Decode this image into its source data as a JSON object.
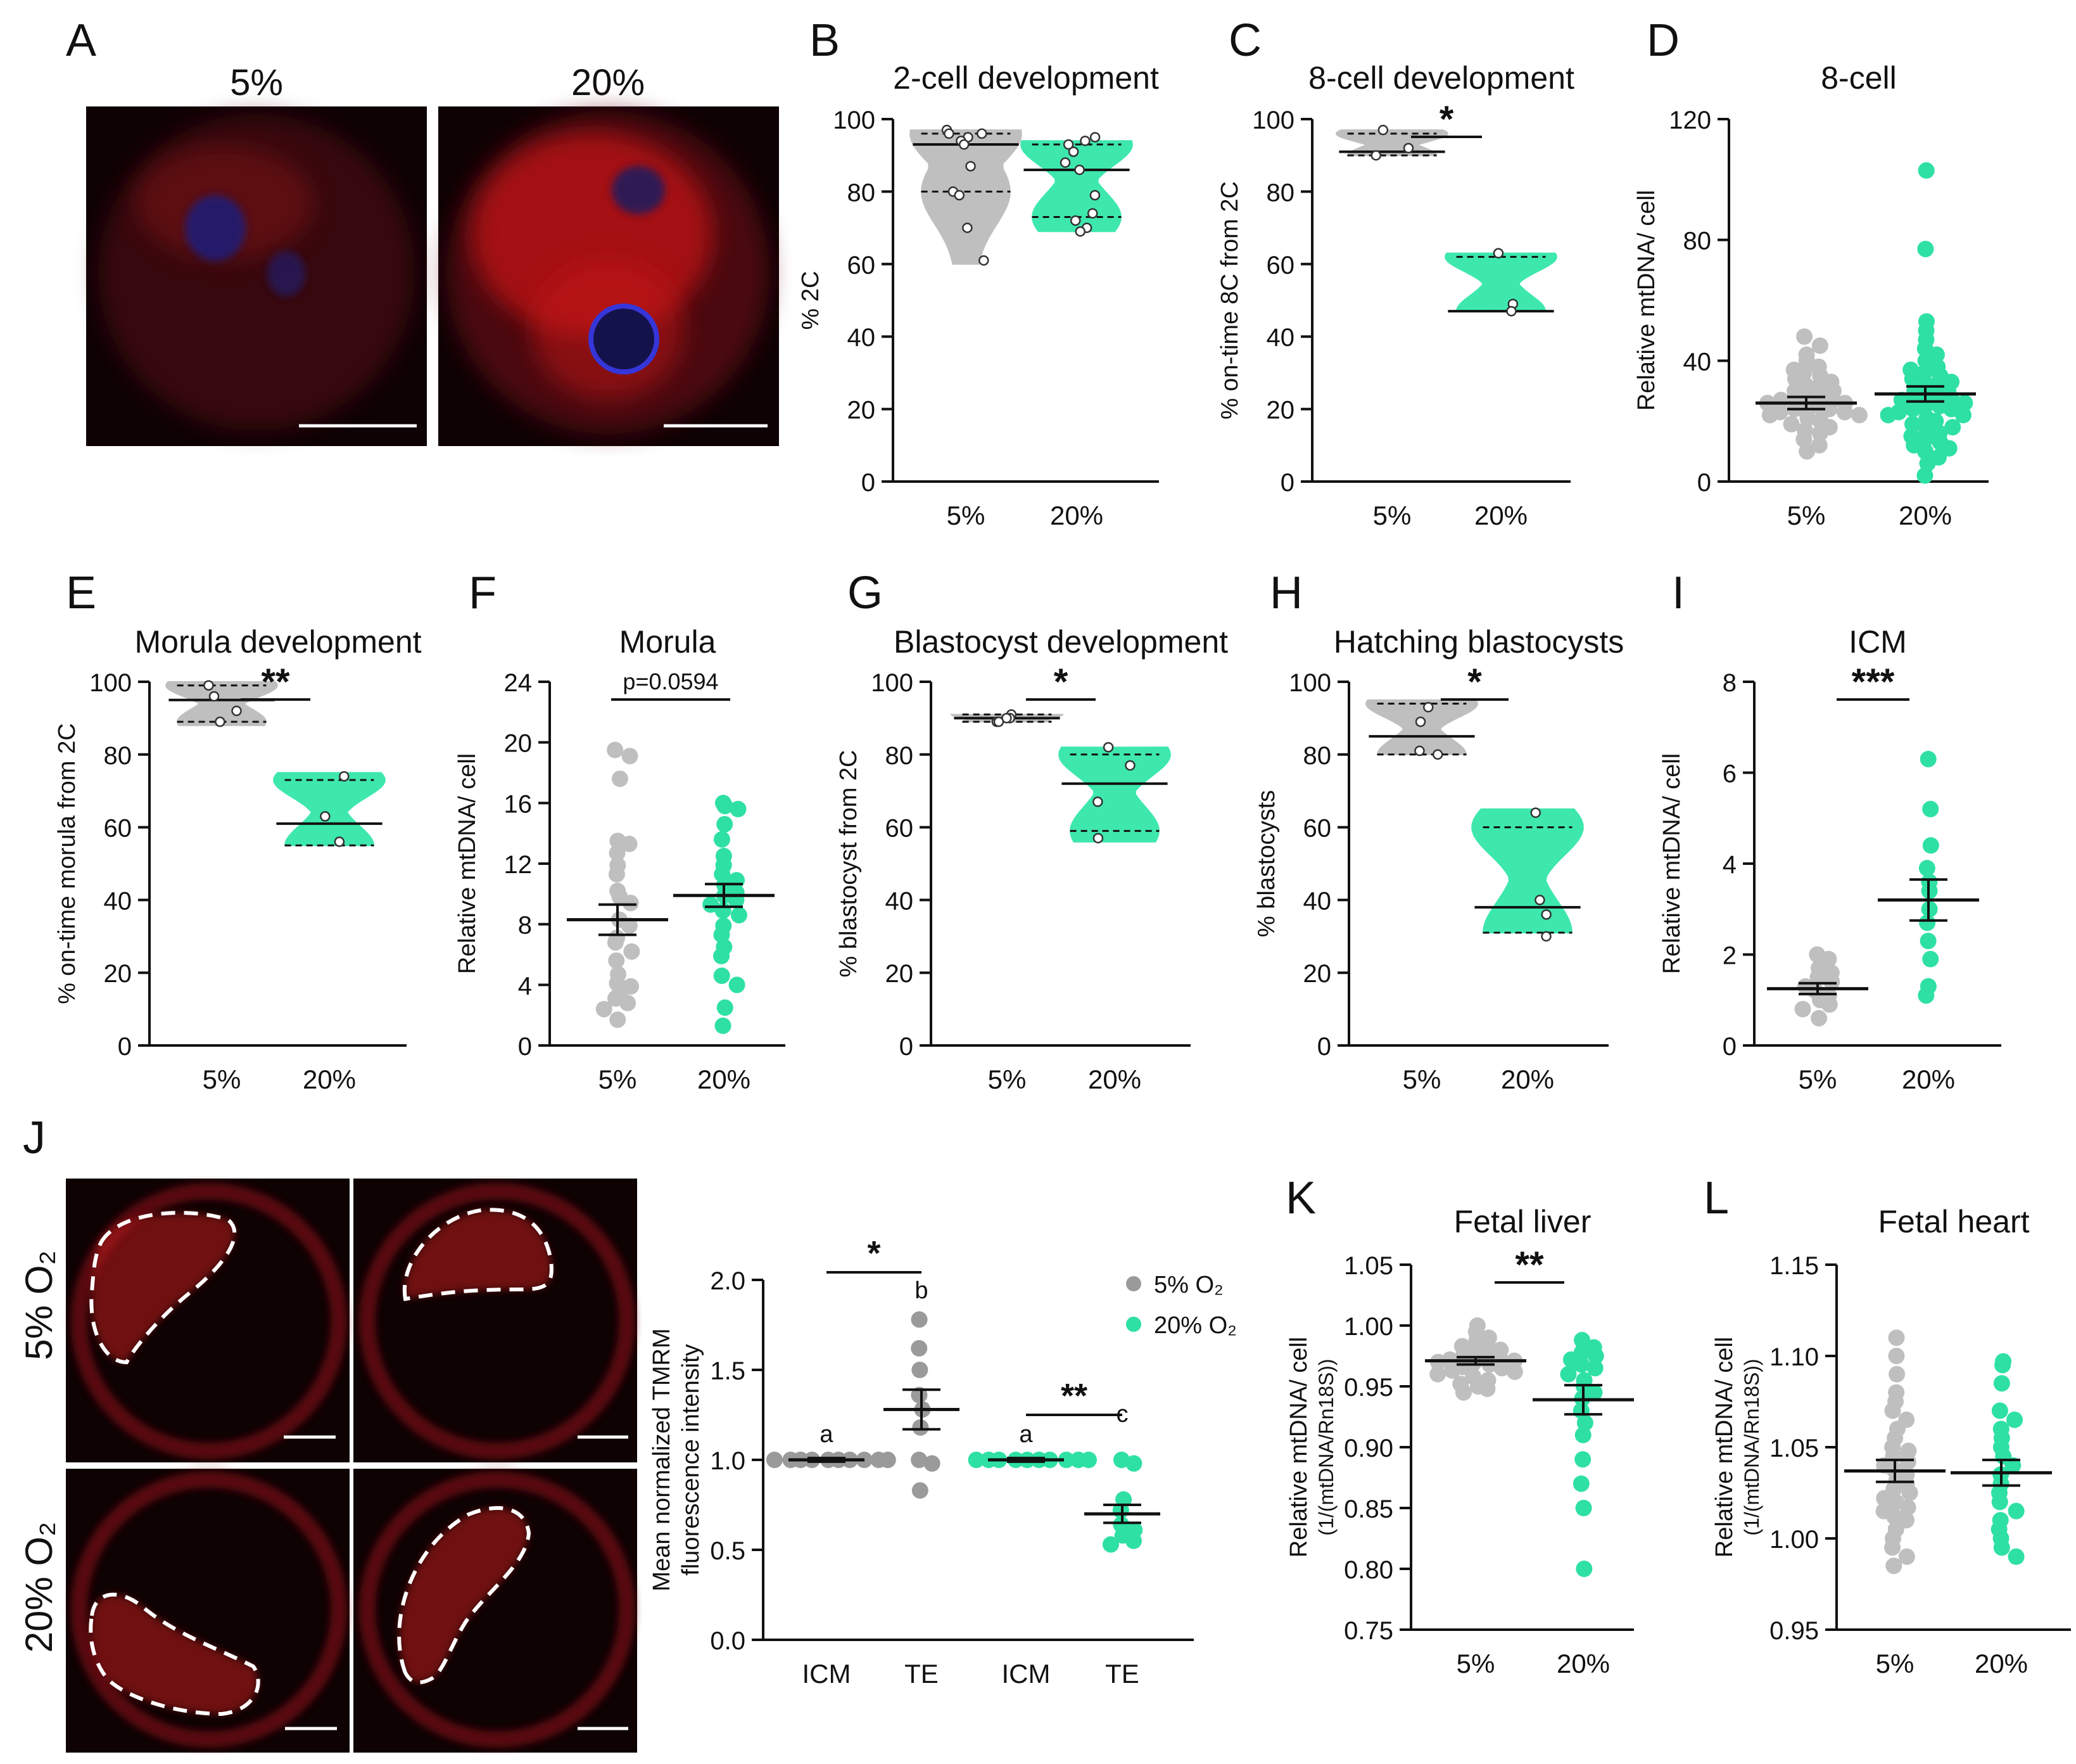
{
  "colors": {
    "gray": "#bfbfbf",
    "grayDark": "#9a9a9a",
    "green": "#2ee0a4",
    "greenFill": "#3ee8ad",
    "black": "#111111",
    "imgBg": "#120204",
    "red": "#e01818",
    "nucleus": "#2a2aa8"
  },
  "panel_letters": [
    "A",
    "B",
    "C",
    "D",
    "E",
    "F",
    "G",
    "H",
    "I",
    "J",
    "K",
    "L"
  ],
  "imaging": {
    "A": {
      "labels": [
        "5%",
        "20%"
      ]
    },
    "J": {
      "rows": [
        "5% O₂",
        "20% O₂"
      ]
    }
  },
  "chart_data": [
    {
      "id": "B",
      "type": "violin",
      "title": "2-cell development",
      "ylabel": "% 2C",
      "categories": [
        "5%",
        "20%"
      ],
      "ylim": [
        0,
        100
      ],
      "yticks": [
        "0",
        "20",
        "40",
        "60",
        "80",
        "100"
      ],
      "series": [
        {
          "name": "5%",
          "median": 93,
          "q1": 80,
          "q3": 96,
          "min": 60,
          "max": 97,
          "points": [
            97,
            96,
            96,
            95,
            94,
            93,
            87,
            80,
            79,
            70,
            61
          ]
        },
        {
          "name": "20%",
          "median": 86,
          "q1": 73,
          "q3": 93,
          "min": 69,
          "max": 94,
          "points": [
            95,
            94,
            93,
            91,
            88,
            86,
            79,
            74,
            72,
            70,
            69
          ]
        }
      ],
      "sig": null
    },
    {
      "id": "C",
      "type": "violin",
      "title": "8-cell development",
      "ylabel": "% on-time 8C from 2C",
      "categories": [
        "5%",
        "20%"
      ],
      "ylim": [
        0,
        100
      ],
      "yticks": [
        "0",
        "20",
        "40",
        "60",
        "80",
        "100"
      ],
      "series": [
        {
          "name": "5%",
          "median": 91,
          "q1": 90,
          "q3": 96,
          "min": 90,
          "max": 97,
          "points": [
            97,
            92,
            90
          ]
        },
        {
          "name": "20%",
          "median": 47,
          "q1": 47,
          "q3": 62,
          "min": 47,
          "max": 63,
          "points": [
            63,
            49,
            47
          ]
        }
      ],
      "sig": "*"
    },
    {
      "id": "D",
      "type": "scatter",
      "title": "8-cell",
      "ylabel": "Relative mtDNA/ cell",
      "categories": [
        "5%",
        "20%"
      ],
      "ylim": [
        0,
        120
      ],
      "yticks": [
        "0",
        "40",
        "80",
        "120"
      ],
      "series": [
        {
          "name": "5%",
          "mean": 26,
          "sem": 2,
          "points": [
            48,
            45,
            42,
            40,
            38,
            37,
            36,
            35,
            34,
            33,
            32,
            31,
            30,
            30,
            29,
            28,
            28,
            27,
            27,
            26,
            26,
            25,
            25,
            24,
            24,
            23,
            23,
            22,
            22,
            21,
            20,
            19,
            18,
            17,
            16,
            14,
            12,
            10
          ]
        },
        {
          "name": "20%",
          "mean": 29,
          "sem": 2.5,
          "points": [
            103,
            77,
            53,
            50,
            47,
            44,
            42,
            40,
            38,
            37,
            36,
            35,
            34,
            33,
            32,
            31,
            30,
            30,
            29,
            28,
            28,
            27,
            27,
            26,
            25,
            25,
            24,
            24,
            23,
            22,
            22,
            21,
            20,
            19,
            18,
            17,
            16,
            15,
            14,
            13,
            12,
            11,
            10,
            8,
            6,
            2
          ]
        }
      ],
      "sig": null
    },
    {
      "id": "E",
      "type": "violin",
      "title": "Morula development",
      "ylabel": "% on-time morula from 2C",
      "categories": [
        "5%",
        "20%"
      ],
      "ylim": [
        0,
        100
      ],
      "yticks": [
        "0",
        "20",
        "40",
        "60",
        "80",
        "100"
      ],
      "series": [
        {
          "name": "5%",
          "median": 95,
          "q1": 89,
          "q3": 99,
          "min": 88,
          "max": 100,
          "points": [
            99,
            96,
            92,
            89
          ]
        },
        {
          "name": "20%",
          "median": 61,
          "q1": 55,
          "q3": 73,
          "min": 55,
          "max": 75,
          "points": [
            74,
            63,
            56
          ]
        }
      ],
      "sig": "**"
    },
    {
      "id": "F",
      "type": "scatter",
      "title": "Morula",
      "ylabel": "Relative mtDNA/ cell",
      "categories": [
        "5%",
        "20%"
      ],
      "ylim": [
        0,
        24
      ],
      "yticks": [
        "0",
        "4",
        "8",
        "12",
        "16",
        "20",
        "24"
      ],
      "ptext": "p=0.0594",
      "series": [
        {
          "name": "5%",
          "mean": 8.3,
          "sem": 1.0,
          "points": [
            19.5,
            19.1,
            17.6,
            13.5,
            13.3,
            12.7,
            11.9,
            11.3,
            10.2,
            9.8,
            9.4,
            8.3,
            7.9,
            7.1,
            6.8,
            6.2,
            5.6,
            4.7,
            4.1,
            3.9,
            3.5,
            3.1,
            2.8,
            2.4,
            1.7
          ]
        },
        {
          "name": "20%",
          "mean": 9.9,
          "sem": 0.75,
          "points": [
            16.0,
            15.8,
            15.6,
            14.6,
            13.6,
            12.5,
            11.9,
            11.3,
            10.9,
            10.6,
            10.1,
            9.9,
            9.6,
            9.3,
            8.9,
            8.6,
            7.9,
            7.3,
            6.5,
            5.9,
            4.6,
            4.0,
            2.5,
            1.3
          ]
        }
      ],
      "sig": null
    },
    {
      "id": "G",
      "type": "violin",
      "title": "Blastocyst development",
      "ylabel": "% blastocyst from 2C",
      "categories": [
        "5%",
        "20%"
      ],
      "ylim": [
        0,
        100
      ],
      "yticks": [
        "0",
        "20",
        "40",
        "60",
        "80",
        "100"
      ],
      "series": [
        {
          "name": "5%",
          "median": 90,
          "q1": 89,
          "q3": 91,
          "min": 89,
          "max": 91,
          "points": [
            91,
            90,
            90,
            89,
            89
          ]
        },
        {
          "name": "20%",
          "median": 72,
          "q1": 59,
          "q3": 80,
          "min": 56,
          "max": 82,
          "points": [
            82,
            77,
            67,
            57
          ]
        }
      ],
      "sig": "*"
    },
    {
      "id": "H",
      "type": "violin",
      "title": "Hatching blastocysts",
      "ylabel": "% blastocysts",
      "categories": [
        "5%",
        "20%"
      ],
      "ylim": [
        0,
        100
      ],
      "yticks": [
        "0",
        "20",
        "40",
        "60",
        "80",
        "100"
      ],
      "series": [
        {
          "name": "5%",
          "median": 85,
          "q1": 80,
          "q3": 94,
          "min": 80,
          "max": 95,
          "points": [
            93,
            89,
            81,
            80
          ]
        },
        {
          "name": "20%",
          "median": 38,
          "q1": 31,
          "q3": 60,
          "min": 31,
          "max": 65,
          "points": [
            64,
            40,
            36,
            30
          ]
        }
      ],
      "sig": "*"
    },
    {
      "id": "I",
      "type": "scatter",
      "title": "ICM",
      "ylabel": "Relative mtDNA/ cell",
      "categories": [
        "5%",
        "20%"
      ],
      "ylim": [
        0,
        8
      ],
      "yticks": [
        "0",
        "2",
        "4",
        "6",
        "8"
      ],
      "series": [
        {
          "name": "5%",
          "mean": 1.25,
          "sem": 0.12,
          "points": [
            2.0,
            1.9,
            1.7,
            1.6,
            1.5,
            1.4,
            1.3,
            1.2,
            1.1,
            1.0,
            0.9,
            0.8,
            0.6
          ]
        },
        {
          "name": "20%",
          "mean": 3.2,
          "sem": 0.45,
          "points": [
            6.3,
            5.2,
            4.4,
            3.9,
            3.6,
            3.4,
            3.0,
            2.7,
            2.3,
            1.9,
            1.3,
            1.1
          ]
        }
      ],
      "sig": "***"
    },
    {
      "id": "J",
      "type": "scatter",
      "title": "",
      "ylabel": "Mean normalized TMRM fluorescence intensity",
      "categories": [
        "ICM",
        "TE",
        "ICM",
        "TE"
      ],
      "ylim": [
        0,
        2
      ],
      "yticks": [
        "0.0",
        "0.5",
        "1.0",
        "1.5",
        "2.0"
      ],
      "legend": [
        {
          "name": "5% O₂",
          "color": "gray"
        },
        {
          "name": "20% O₂",
          "color": "green"
        }
      ],
      "letters": [
        "a",
        "b",
        "a",
        "c"
      ],
      "series": [
        {
          "name": "5% O₂ ICM",
          "group": "gray",
          "mean": 1.0,
          "sem": 0.01,
          "points": [
            1,
            1,
            1,
            1,
            1,
            1,
            1,
            1,
            1,
            1
          ]
        },
        {
          "name": "5% O₂ TE",
          "group": "gray",
          "mean": 1.28,
          "sem": 0.11,
          "points": [
            1.78,
            1.62,
            1.5,
            1.36,
            1.28,
            1.18,
            1.0,
            0.98,
            0.83
          ]
        },
        {
          "name": "20% O₂ ICM",
          "group": "green",
          "mean": 1.0,
          "sem": 0.01,
          "points": [
            1,
            1,
            1,
            1,
            1,
            1,
            1,
            1,
            1,
            1
          ]
        },
        {
          "name": "20% O₂ TE",
          "group": "green",
          "mean": 0.7,
          "sem": 0.05,
          "points": [
            1.0,
            0.98,
            0.78,
            0.72,
            0.64,
            0.61,
            0.58,
            0.55,
            0.53
          ]
        }
      ],
      "sigs": [
        {
          "text": "*",
          "from": 0,
          "to": 1
        },
        {
          "text": "**",
          "from": 2,
          "to": 3
        }
      ]
    },
    {
      "id": "K",
      "type": "scatter",
      "title": "Fetal liver",
      "ylabel": "Relative mtDNA/ cell",
      "ylabel2": "(1/(mtDNA/Rn18S))",
      "categories": [
        "5%",
        "20%"
      ],
      "ylim": [
        0.75,
        1.05
      ],
      "yticks": [
        "0.75",
        "0.80",
        "0.85",
        "0.90",
        "0.95",
        "1.00",
        "1.05"
      ],
      "series": [
        {
          "name": "5%",
          "mean": 0.971,
          "sem": 0.003,
          "points": [
            1.0,
            0.995,
            0.99,
            0.988,
            0.985,
            0.983,
            0.98,
            0.978,
            0.976,
            0.975,
            0.973,
            0.972,
            0.971,
            0.97,
            0.969,
            0.968,
            0.966,
            0.965,
            0.963,
            0.962,
            0.96,
            0.958,
            0.955,
            0.952,
            0.95,
            0.948,
            0.945
          ]
        },
        {
          "name": "20%",
          "mean": 0.939,
          "sem": 0.012,
          "points": [
            0.988,
            0.982,
            0.978,
            0.975,
            0.972,
            0.968,
            0.965,
            0.96,
            0.955,
            0.95,
            0.945,
            0.94,
            0.93,
            0.92,
            0.91,
            0.89,
            0.87,
            0.85,
            0.8
          ]
        }
      ],
      "sig": "**"
    },
    {
      "id": "L",
      "type": "scatter",
      "title": "Fetal heart",
      "ylabel": "Relative mtDNA/ cell",
      "ylabel2": "(1/(mtDNA/Rn18S))",
      "categories": [
        "5%",
        "20%"
      ],
      "ylim": [
        0.95,
        1.15
      ],
      "yticks": [
        "0.95",
        "1.00",
        "1.05",
        "1.10",
        "1.15"
      ],
      "series": [
        {
          "name": "5%",
          "mean": 1.037,
          "sem": 0.006,
          "points": [
            1.11,
            1.1,
            1.09,
            1.08,
            1.075,
            1.07,
            1.065,
            1.06,
            1.055,
            1.05,
            1.048,
            1.045,
            1.042,
            1.04,
            1.038,
            1.035,
            1.032,
            1.03,
            1.027,
            1.025,
            1.022,
            1.02,
            1.017,
            1.015,
            1.012,
            1.01,
            1.005,
            1.0,
            0.995,
            0.99,
            0.985
          ]
        },
        {
          "name": "20%",
          "mean": 1.036,
          "sem": 0.007,
          "points": [
            1.097,
            1.095,
            1.085,
            1.07,
            1.065,
            1.06,
            1.055,
            1.05,
            1.045,
            1.04,
            1.035,
            1.03,
            1.025,
            1.02,
            1.015,
            1.01,
            1.005,
            1.0,
            0.995,
            0.99
          ]
        }
      ],
      "sig": null
    }
  ]
}
